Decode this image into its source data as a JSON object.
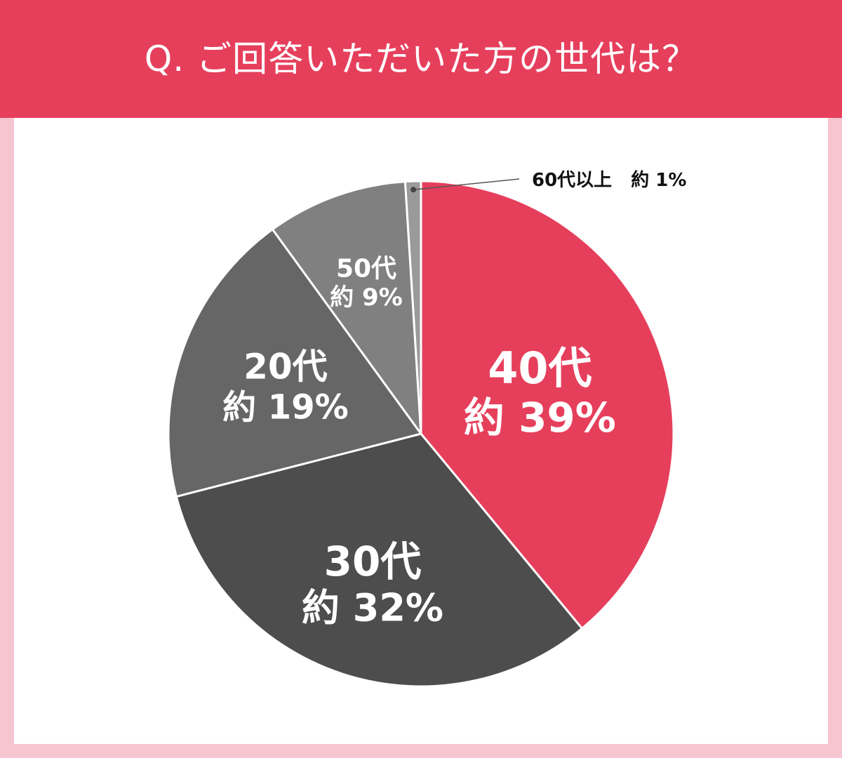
{
  "title": "Q. ご回答いただいた方の世代は？",
  "chart_data": {
    "type": "pie",
    "title": "Q. ご回答いただいた方の世代は？",
    "slices": [
      {
        "category": "40代",
        "value_label": "約 39%",
        "value": 39,
        "color": "#e63f5c"
      },
      {
        "category": "30代",
        "value_label": "約 32%",
        "value": 32,
        "color": "#4d4d4d"
      },
      {
        "category": "20代",
        "value_label": "約 19%",
        "value": 19,
        "color": "#666666"
      },
      {
        "category": "50代",
        "value_label": "約 9%",
        "value": 9,
        "color": "#808080"
      },
      {
        "category": "60代以上",
        "value_label": "約 1%",
        "value": 1,
        "color": "#9a9a9a"
      }
    ],
    "external_label": {
      "category": "60代以上",
      "value_label": "約 1%"
    }
  },
  "colors": {
    "accent": "#e63f5c",
    "frame": "#f7c5cf"
  }
}
